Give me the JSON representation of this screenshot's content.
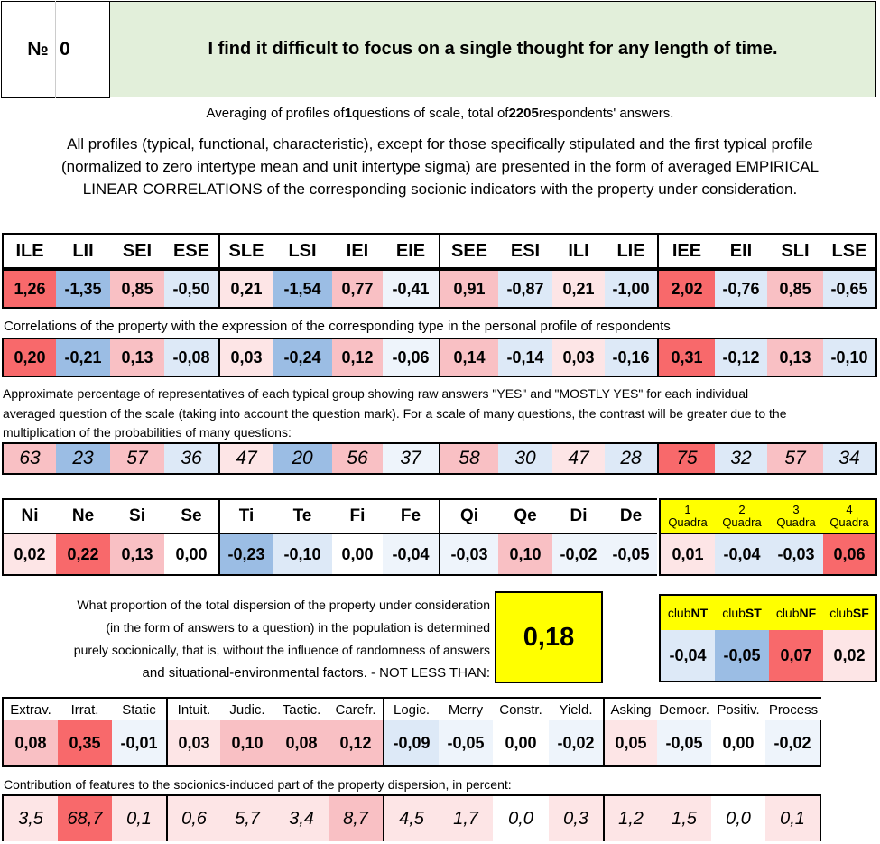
{
  "header": {
    "number_label": "№",
    "number_value": "0",
    "statement": "I find it difficult to focus on a single thought for any length of time."
  },
  "averaging": {
    "pre": "Averaging of profiles of ",
    "questions": "1",
    "mid": " questions of scale, total of ",
    "answers": "2205",
    "post": " respondents' answers."
  },
  "description": {
    "line1": "All profiles (typical, functional, characteristic), except for those specifically stipulated and the first typical profile",
    "line2": "(normalized to zero intertype mean and unit intertype sigma) are presented in the form of averaged EMPIRICAL",
    "line3": "LINEAR CORRELATIONS of the corresponding socionic indicators with the property under consideration."
  },
  "types": [
    "ILE",
    "LII",
    "SEI",
    "ESE",
    "SLE",
    "LSI",
    "IEI",
    "EIE",
    "SEE",
    "ESI",
    "ILI",
    "LIE",
    "IEE",
    "EII",
    "SLI",
    "LSE"
  ],
  "type_profile": [
    "1,26",
    "-1,35",
    "0,85",
    "-0,50",
    "0,21",
    "-1,54",
    "0,77",
    "-0,41",
    "0,91",
    "-0,87",
    "0,21",
    "-1,00",
    "2,02",
    "-0,76",
    "0,85",
    "-0,65"
  ],
  "corr_caption": "Correlations of the property with the expression of the corresponding type in the personal profile of respondents",
  "type_corr": [
    "0,20",
    "-0,21",
    "0,13",
    "-0,08",
    "0,03",
    "-0,24",
    "0,12",
    "-0,06",
    "0,14",
    "-0,14",
    "0,03",
    "-0,16",
    "0,31",
    "-0,12",
    "0,13",
    "-0,10"
  ],
  "pct_caption": {
    "line1": "Approximate percentage of representatives of each typical group showing raw answers \"YES\" and \"MOSTLY YES\" for each individual",
    "line2": "averaged question of the scale (taking into account the question mark). For a scale of many questions, the contrast will be greater due to the",
    "line3": "multiplication of the probabilities of many questions:"
  },
  "type_pct": [
    "63",
    "23",
    "57",
    "36",
    "47",
    "20",
    "56",
    "37",
    "58",
    "30",
    "47",
    "28",
    "75",
    "32",
    "57",
    "34"
  ],
  "functions": [
    "Ni",
    "Ne",
    "Si",
    "Se",
    "Ti",
    "Te",
    "Fi",
    "Fe",
    "Qi",
    "Qe",
    "Di",
    "De"
  ],
  "function_values": [
    "0,02",
    "0,22",
    "0,13",
    "0,00",
    "-0,23",
    "-0,10",
    "0,00",
    "-0,04",
    "-0,03",
    "0,10",
    "-0,02",
    "-0,05"
  ],
  "quadras": [
    {
      "num": "1",
      "label": "Quadra"
    },
    {
      "num": "2",
      "label": "Quadra"
    },
    {
      "num": "3",
      "label": "Quadra"
    },
    {
      "num": "4",
      "label": "Quadra"
    }
  ],
  "quadra_values": [
    "0,01",
    "-0,04",
    "-0,03",
    "0,06"
  ],
  "dispersion": {
    "line1": "What proportion of the total dispersion of the property under consideration",
    "line2": "(in the form of answers to a question) in the population is determined",
    "line3": "purely socionically, that is, without the influence of randomness of answers",
    "line4": "and situational-environmental factors. - NOT LESS THAN:",
    "value": "0,18"
  },
  "clubs": [
    {
      "pre": "club",
      "code": "NT"
    },
    {
      "pre": "club",
      "code": "ST"
    },
    {
      "pre": "club",
      "code": "NF"
    },
    {
      "pre": "club",
      "code": "SF"
    }
  ],
  "club_values": [
    "-0,04",
    "-0,05",
    "0,07",
    "0,02"
  ],
  "reinin": [
    "Extrav.",
    "Irrat.",
    "Static",
    "Intuit.",
    "Judic.",
    "Tactic.",
    "Carefr.",
    "Logic.",
    "Merry",
    "Constr.",
    "Yield.",
    "Asking",
    "Democr.",
    "Positiv.",
    "Process"
  ],
  "reinin_values": [
    "0,08",
    "0,35",
    "-0,01",
    "0,03",
    "0,10",
    "0,08",
    "0,12",
    "-0,09",
    "-0,05",
    "0,00",
    "-0,02",
    "0,05",
    "-0,05",
    "0,00",
    "-0,02"
  ],
  "contrib_caption": "Contribution of features to the socionics-induced part of the property dispersion, in percent:",
  "reinin_contrib": [
    "3,5",
    "68,7",
    "0,1",
    "0,6",
    "5,7",
    "3,4",
    "8,7",
    "4,5",
    "1,7",
    "0,0",
    "0,3",
    "1,2",
    "1,5",
    "0,0",
    "0,1"
  ],
  "colors": {
    "header_bg": "#e2efda",
    "highlight_yellow": "#ffff00",
    "strong_red": "#f8696b",
    "light_red": "#f9c0c4",
    "strong_blue": "#9bbde4",
    "light_blue": "#dde9f7"
  }
}
